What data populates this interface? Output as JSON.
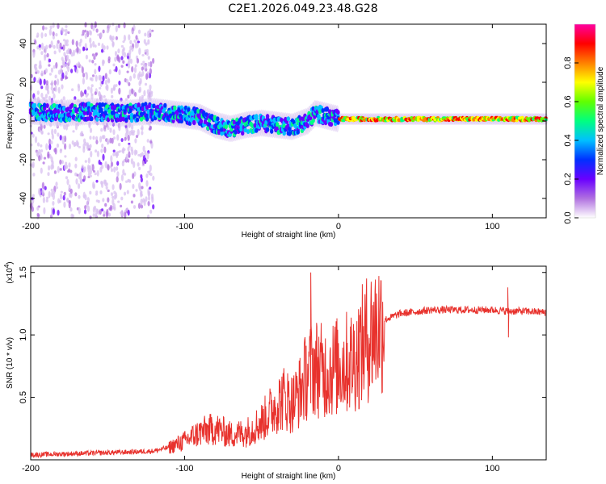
{
  "title": "C2E1.2026.049.23.48.G28",
  "chart_data": [
    {
      "type": "heatmap",
      "xlabel": "Height of straight line (km)",
      "ylabel": "Frequency (Hz)",
      "xlim": [
        -200,
        135
      ],
      "ylim": [
        -50,
        50
      ],
      "xticks": [
        -200,
        -100,
        0,
        100
      ],
      "yticks": [
        -40,
        -20,
        0,
        20,
        40
      ],
      "colorbar": {
        "label": "Normalized spectral amplitude",
        "range": [
          0,
          1
        ],
        "ticks": [
          "0.0",
          "0.2",
          "0.4",
          "0.6",
          "0.8"
        ],
        "tick_values": [
          0,
          0.2,
          0.4,
          0.6,
          0.8
        ],
        "colors": [
          "#ffffff",
          "#b070e0",
          "#6a00ff",
          "#0030ff",
          "#00c0ff",
          "#00ff80",
          "#60ff00",
          "#ffff00",
          "#ff8000",
          "#ff0000",
          "#ff00a0"
        ]
      },
      "ridge": {
        "x": [
          -200,
          -180,
          -160,
          -140,
          -120,
          -100,
          -90,
          -80,
          -70,
          -60,
          -50,
          -40,
          -30,
          -20,
          -15,
          -10,
          0,
          20,
          50,
          100,
          135
        ],
        "y": [
          5,
          4,
          5,
          4,
          5,
          3,
          2,
          -2,
          -4,
          -2,
          -1,
          -2,
          -3,
          0,
          4,
          3,
          1,
          1,
          1,
          1,
          1
        ]
      }
    },
    {
      "type": "line",
      "xlabel": "Height of straight line (km)",
      "ylabel": "SNR (10 * v/v)",
      "yscale_label": "(x10",
      "yscale_exponent": "4",
      "yscale_suffix": ")",
      "xlim": [
        -200,
        135
      ],
      "ylim": [
        0,
        1.55
      ],
      "xticks": [
        -200,
        -100,
        0,
        100
      ],
      "yticks": [
        0.5,
        1.0,
        1.5
      ],
      "ytick_labels": [
        "0.5",
        "1.0",
        "1.5"
      ],
      "color": "#e8322d",
      "trend": {
        "x": [
          -200,
          -170,
          -140,
          -120,
          -110,
          -100,
          -90,
          -80,
          -70,
          -60,
          -50,
          -40,
          -35,
          -30,
          -25,
          -20,
          -15,
          -10,
          0,
          10,
          20,
          30,
          40,
          60,
          80,
          100,
          110,
          120,
          135
        ],
        "y": [
          0.04,
          0.05,
          0.06,
          0.07,
          0.1,
          0.15,
          0.22,
          0.25,
          0.2,
          0.22,
          0.3,
          0.45,
          0.5,
          0.45,
          0.55,
          0.7,
          0.75,
          0.7,
          0.75,
          0.8,
          1.0,
          1.12,
          1.17,
          1.2,
          1.2,
          1.2,
          1.19,
          1.19,
          1.18
        ]
      },
      "spikes": {
        "x": [
          -18,
          110,
          110.5
        ],
        "y": [
          1.5,
          1.38,
          0.98
        ]
      }
    }
  ]
}
